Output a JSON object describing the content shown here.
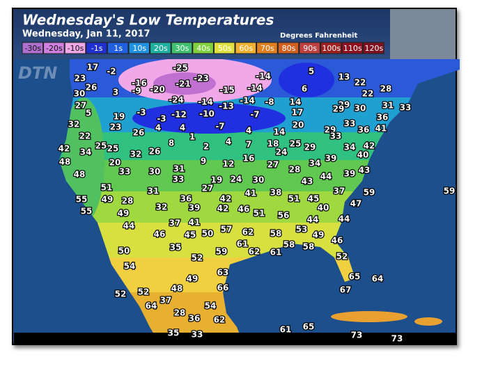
{
  "header": {
    "title": "Wednesday's Low Temperatures",
    "subtitle": "Wednesday, Jan 11, 2017",
    "units": "Degrees Fahrenheit"
  },
  "logo": "DTN",
  "legend": [
    {
      "label": "-30s",
      "color": "#b070d0"
    },
    {
      "label": "-20s",
      "color": "#d080e0"
    },
    {
      "label": "-10s",
      "color": "#f0a8e8"
    },
    {
      "label": "-1s",
      "color": "#2030d0"
    },
    {
      "label": "1s",
      "color": "#2060e0"
    },
    {
      "label": "10s",
      "color": "#2090e0"
    },
    {
      "label": "20s",
      "color": "#20b0a0"
    },
    {
      "label": "30s",
      "color": "#40c070"
    },
    {
      "label": "40s",
      "color": "#80d040"
    },
    {
      "label": "50s",
      "color": "#e0e040"
    },
    {
      "label": "60s",
      "color": "#f0b030"
    },
    {
      "label": "70s",
      "color": "#e08020"
    },
    {
      "label": "80s",
      "color": "#d06020"
    },
    {
      "label": "90s",
      "color": "#c04040"
    },
    {
      "label": "100s",
      "color": "#a02020"
    },
    {
      "label": "110s",
      "color": "#901020"
    },
    {
      "label": "120s",
      "color": "#801020"
    }
  ],
  "temperatures": [
    17,
    -2,
    -25,
    5,
    -14,
    13,
    23,
    -16,
    -21,
    -23,
    22,
    26,
    -9,
    -20,
    -15,
    -14,
    6,
    28,
    30,
    3,
    22,
    -24,
    -14,
    -13,
    -14,
    -8,
    14,
    27,
    29,
    31,
    33,
    5,
    -3,
    -12,
    -10,
    -7,
    17,
    30,
    29,
    19,
    -3,
    36,
    32,
    23,
    4,
    4,
    -7,
    4,
    14,
    20,
    33,
    36,
    41,
    22,
    26,
    8,
    1,
    29,
    33,
    42,
    34,
    25,
    25,
    32,
    26,
    2,
    4,
    7,
    18,
    25,
    29,
    34,
    42,
    24,
    40,
    48,
    20,
    9,
    12,
    16,
    27,
    34,
    39,
    43,
    28,
    39,
    48,
    33,
    30,
    31,
    33,
    19,
    24,
    30,
    43,
    44,
    27,
    51,
    31,
    42,
    41,
    38,
    37,
    59,
    59,
    55,
    49,
    28,
    36,
    51,
    45,
    47,
    32,
    39,
    42,
    46,
    51,
    40,
    55,
    49,
    56,
    37,
    41,
    44,
    44,
    44,
    57,
    62,
    53,
    46,
    45,
    50,
    58,
    49,
    61,
    46,
    50,
    35,
    59,
    62,
    61,
    58,
    58,
    52,
    52,
    54,
    63,
    49,
    65,
    64,
    48,
    66,
    67,
    52,
    52,
    37,
    64,
    54,
    28,
    36,
    62,
    35,
    33,
    61,
    65,
    73,
    73
  ]
}
